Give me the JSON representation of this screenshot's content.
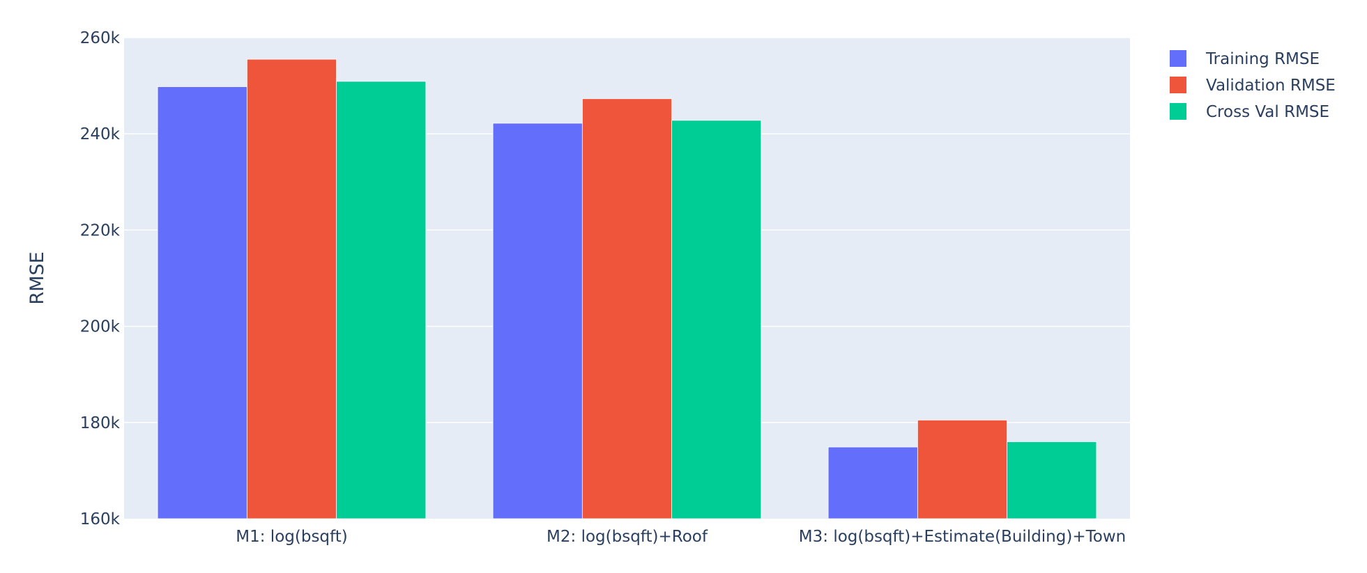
{
  "chart_data": {
    "type": "bar",
    "categories": [
      "M1: log(bsqft)",
      "M2: log(bsqft)+Roof",
      "M3: log(bsqft)+Estimate(Building)+Town"
    ],
    "series": [
      {
        "name": "Training RMSE",
        "color": "#636efa",
        "values": [
          249800,
          242200,
          174900
        ]
      },
      {
        "name": "Validation RMSE",
        "color": "#ef553b",
        "values": [
          255500,
          247300,
          180500
        ]
      },
      {
        "name": "Cross Val RMSE",
        "color": "#00cc96",
        "values": [
          250900,
          242800,
          176000
        ]
      }
    ],
    "ylabel": "RMSE",
    "ylim": [
      160000,
      260000
    ],
    "yticks": [
      160000,
      180000,
      200000,
      220000,
      240000,
      260000
    ],
    "ytick_labels": [
      "160k",
      "180k",
      "200k",
      "220k",
      "240k",
      "260k"
    ],
    "grid": true,
    "legend_position": "top-right",
    "plot_background": "#e5ecf6"
  }
}
